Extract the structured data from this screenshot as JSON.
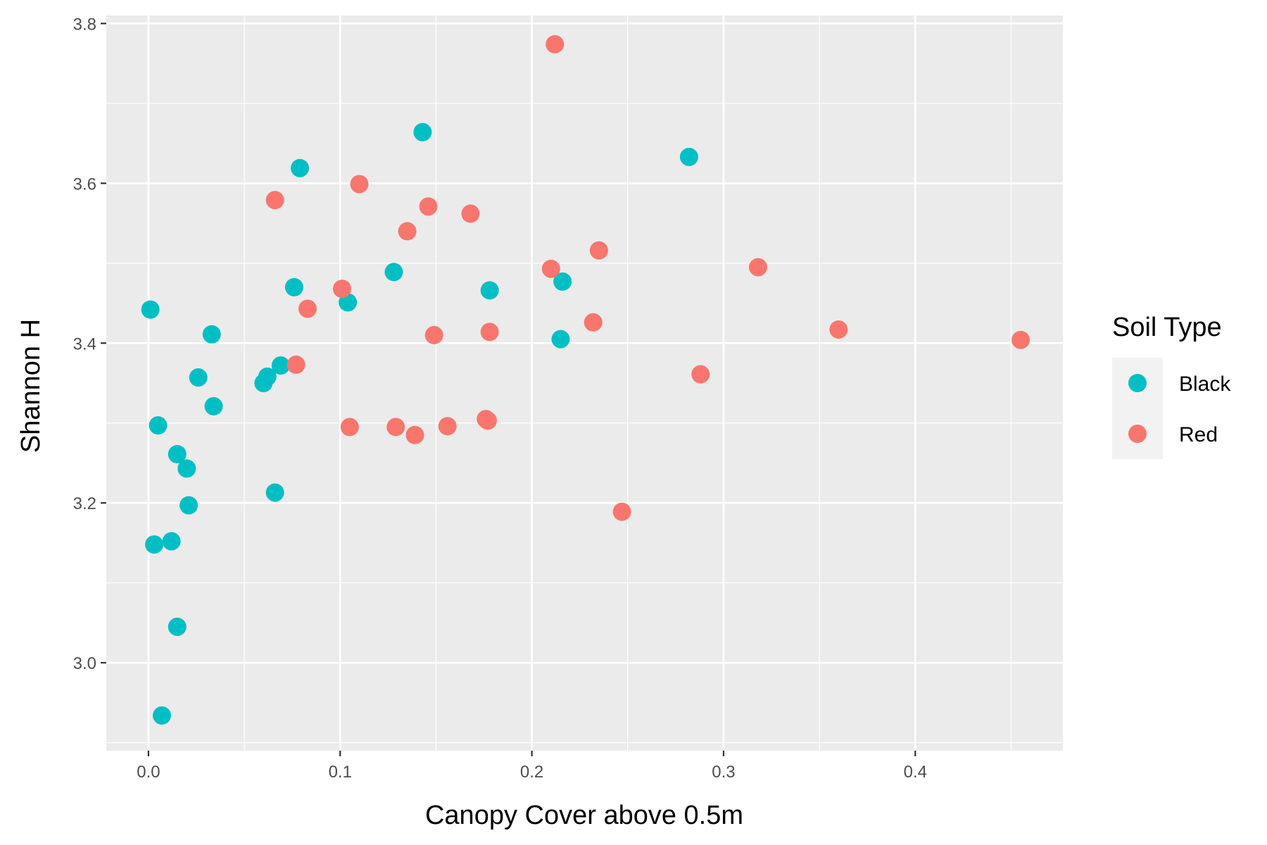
{
  "chart_data": {
    "type": "scatter",
    "xlabel": "Canopy Cover above 0.5m",
    "ylabel": "Shannon H",
    "xlim": [
      -0.022,
      0.477
    ],
    "ylim": [
      2.89,
      3.81
    ],
    "x_ticks": [
      0.0,
      0.1,
      0.2,
      0.3,
      0.4
    ],
    "x_tick_labels": [
      "0.0",
      "0.1",
      "0.2",
      "0.3",
      "0.4"
    ],
    "y_ticks": [
      3.0,
      3.2,
      3.4,
      3.6,
      3.8
    ],
    "y_tick_labels": [
      "3.0",
      "3.2",
      "3.4",
      "3.6",
      "3.8"
    ],
    "grid": true,
    "legend": {
      "title": "Soil Type",
      "position": "right"
    },
    "series": [
      {
        "name": "Black",
        "color": "#00BFC4",
        "points": [
          [
            0.001,
            3.442
          ],
          [
            0.033,
            3.411
          ],
          [
            0.026,
            3.357
          ],
          [
            0.034,
            3.321
          ],
          [
            0.005,
            3.297
          ],
          [
            0.015,
            3.261
          ],
          [
            0.02,
            3.243
          ],
          [
            0.021,
            3.197
          ],
          [
            0.003,
            3.148
          ],
          [
            0.012,
            3.152
          ],
          [
            0.015,
            3.045
          ],
          [
            0.007,
            2.934
          ],
          [
            0.076,
            3.47
          ],
          [
            0.06,
            3.35
          ],
          [
            0.062,
            3.358
          ],
          [
            0.069,
            3.372
          ],
          [
            0.066,
            3.213
          ],
          [
            0.079,
            3.619
          ],
          [
            0.104,
            3.451
          ],
          [
            0.128,
            3.489
          ],
          [
            0.143,
            3.664
          ],
          [
            0.178,
            3.466
          ],
          [
            0.216,
            3.477
          ],
          [
            0.215,
            3.405
          ],
          [
            0.282,
            3.633
          ]
        ]
      },
      {
        "name": "Red",
        "color": "#F8766D",
        "points": [
          [
            0.066,
            3.579
          ],
          [
            0.083,
            3.443
          ],
          [
            0.077,
            3.373
          ],
          [
            0.101,
            3.468
          ],
          [
            0.11,
            3.599
          ],
          [
            0.105,
            3.295
          ],
          [
            0.129,
            3.295
          ],
          [
            0.135,
            3.54
          ],
          [
            0.139,
            3.285
          ],
          [
            0.146,
            3.571
          ],
          [
            0.149,
            3.41
          ],
          [
            0.156,
            3.296
          ],
          [
            0.168,
            3.562
          ],
          [
            0.176,
            3.305
          ],
          [
            0.177,
            3.303
          ],
          [
            0.178,
            3.414
          ],
          [
            0.21,
            3.493
          ],
          [
            0.212,
            3.774
          ],
          [
            0.232,
            3.426
          ],
          [
            0.235,
            3.516
          ],
          [
            0.247,
            3.189
          ],
          [
            0.288,
            3.361
          ],
          [
            0.318,
            3.495
          ],
          [
            0.36,
            3.417
          ],
          [
            0.455,
            3.404
          ]
        ]
      }
    ]
  }
}
